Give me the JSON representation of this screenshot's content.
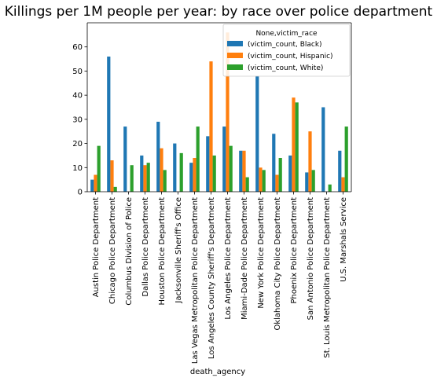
{
  "chart_data": {
    "type": "bar",
    "title": "Killings per 1M people per year: by race over police department",
    "xlabel": "death_agency",
    "ylabel": "",
    "ylim": [
      0,
      70
    ],
    "yticks": [
      0,
      10,
      20,
      30,
      40,
      50,
      60
    ],
    "grid": false,
    "legend": {
      "title": "None,victim_race",
      "placement": "top-right"
    },
    "categories": [
      "Austin Police Department",
      "Chicago Police Department",
      "Columbus Division of Police",
      "Dallas Police Department",
      "Houston Police Department",
      "Jacksonville Sheriff's Office",
      "Las Vegas Metropolitan Police Department",
      "Los Angeles County Sheriff's Department",
      "Los Angeles Police Department",
      "Miami-Dade Police Department",
      "New York Police Department",
      "Oklahoma City Police Department",
      "Phoenix Police Department",
      "San Antonio Police Department",
      "St. Louis Metropolitan Police Department",
      "U.S. Marshals Service"
    ],
    "series": [
      {
        "name": "(victim_count, Black)",
        "color": "#1f77b4",
        "values": [
          5,
          56,
          27,
          15,
          29,
          20,
          12,
          23,
          27,
          17,
          48,
          24,
          15,
          8,
          35,
          17
        ]
      },
      {
        "name": "(victim_count, Hispanic)",
        "color": "#ff7f0e",
        "values": [
          7,
          13,
          0,
          11,
          18,
          0,
          14,
          54,
          66,
          17,
          10,
          7,
          39,
          25,
          0,
          6
        ]
      },
      {
        "name": "(victim_count, White)",
        "color": "#2ca02c",
        "values": [
          19,
          2,
          11,
          12,
          9,
          16,
          27,
          15,
          19,
          6,
          9,
          14,
          37,
          9,
          3,
          27
        ]
      }
    ]
  }
}
